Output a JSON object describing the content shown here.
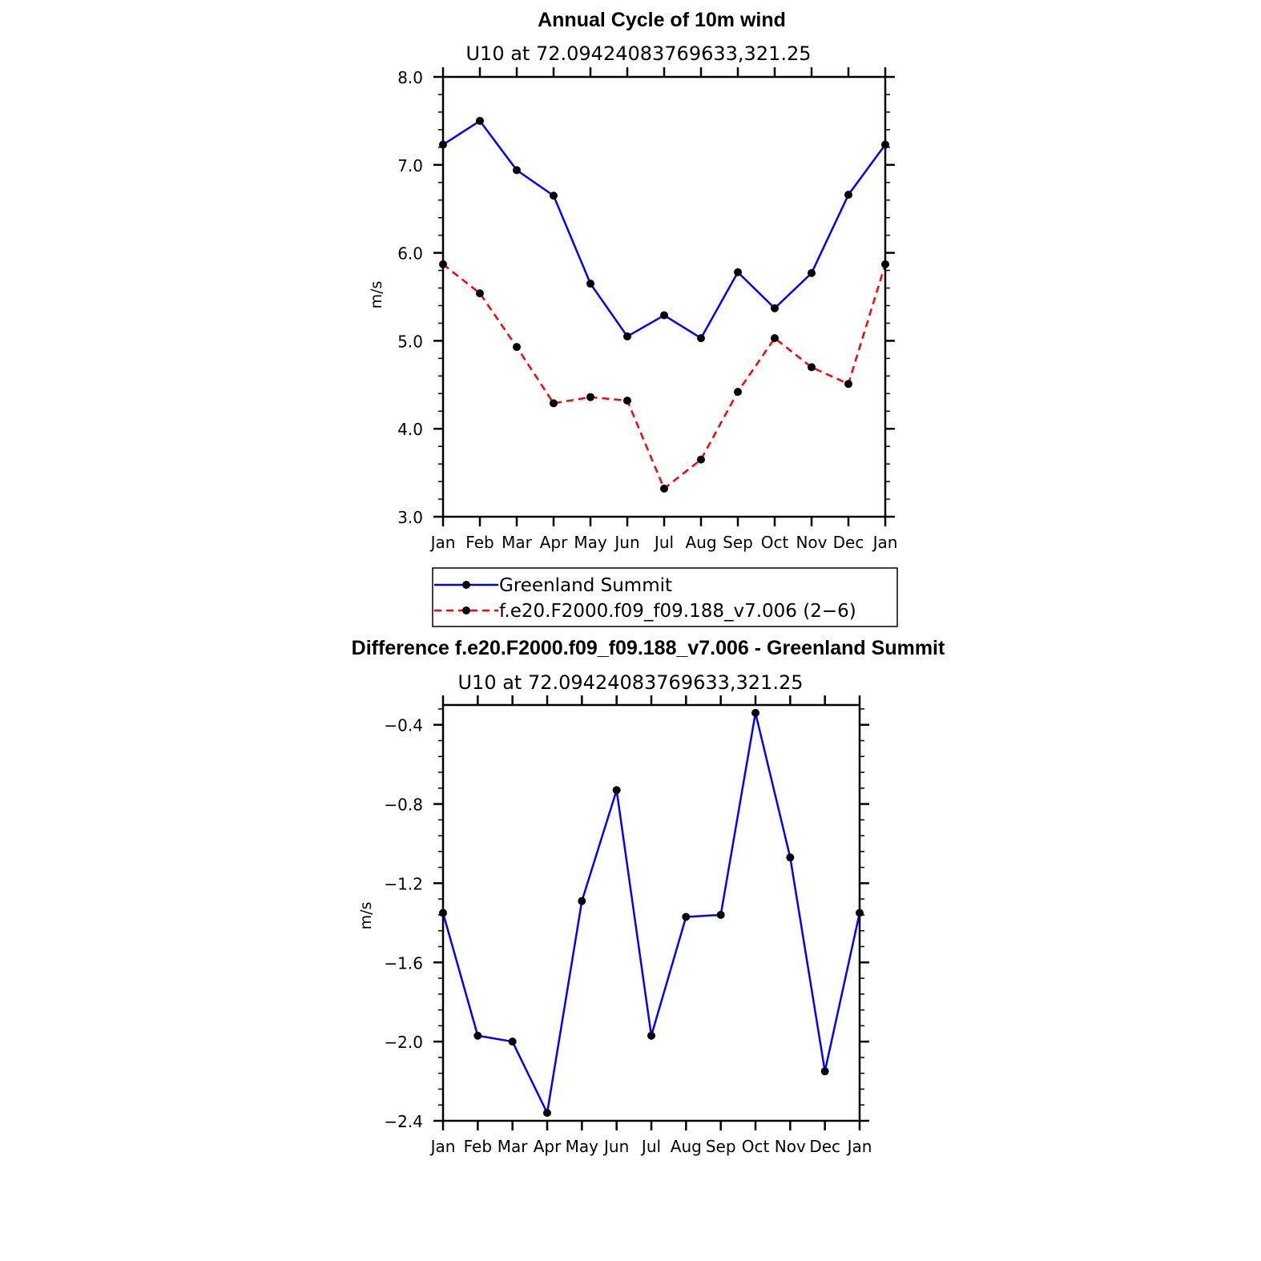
{
  "chart_data": [
    {
      "type": "line",
      "title": "Annual Cycle of 10m wind",
      "subtitle": "U10 at 72.09424083769633,321.25",
      "xlabel": "",
      "ylabel": "m/s",
      "categories": [
        "Jan",
        "Feb",
        "Mar",
        "Apr",
        "May",
        "Jun",
        "Jul",
        "Aug",
        "Sep",
        "Oct",
        "Nov",
        "Dec",
        "Jan"
      ],
      "ylim": [
        3.0,
        8.0
      ],
      "yticks": [
        "3.0",
        "4.0",
        "5.0",
        "6.0",
        "7.0",
        "8.0"
      ],
      "series": [
        {
          "name": "Greenland Summit",
          "color": "#0000ff",
          "dash": "solid",
          "values": [
            7.23,
            7.5,
            6.94,
            6.65,
            5.65,
            5.05,
            5.29,
            5.03,
            5.78,
            5.37,
            5.77,
            6.66,
            7.23
          ]
        },
        {
          "name": "f.e20.F2000.f09_f09.188_v7.006 (2−6)",
          "color": "#ff0000",
          "dash": "dashed",
          "values": [
            5.87,
            5.54,
            4.93,
            4.29,
            4.36,
            4.32,
            3.32,
            3.65,
            4.42,
            5.03,
            4.7,
            4.51,
            5.87
          ]
        }
      ],
      "legend": "below"
    },
    {
      "type": "line",
      "title": "Difference f.e20.F2000.f09_f09.188_v7.006 - Greenland Summit",
      "subtitle": "U10 at 72.09424083769633,321.25",
      "xlabel": "",
      "ylabel": "m/s",
      "categories": [
        "Jan",
        "Feb",
        "Mar",
        "Apr",
        "May",
        "Jun",
        "Jul",
        "Aug",
        "Sep",
        "Oct",
        "Nov",
        "Dec",
        "Jan"
      ],
      "ylim": [
        -2.4,
        -0.3
      ],
      "yticks": [
        "−2.4",
        "−2.0",
        "−1.6",
        "−1.2",
        "−0.8",
        "−0.4"
      ],
      "series": [
        {
          "name": "Difference",
          "color": "#0000ff",
          "dash": "solid",
          "values": [
            -1.35,
            -1.97,
            -2.0,
            -2.36,
            -1.29,
            -0.73,
            -1.97,
            -1.37,
            -1.36,
            -0.34,
            -1.07,
            -2.15,
            -1.35
          ]
        }
      ]
    }
  ]
}
